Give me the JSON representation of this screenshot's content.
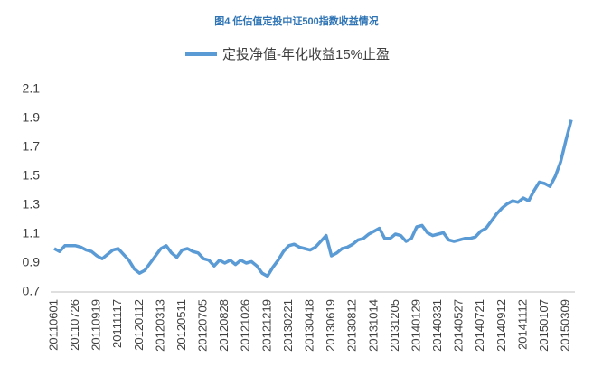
{
  "chart_data": {
    "type": "line",
    "title": "图4   低估值定投中证500指数收益情况",
    "categories": [
      "20110601",
      null,
      null,
      null,
      "20110726",
      null,
      null,
      null,
      "20110919",
      null,
      null,
      null,
      "20111117",
      null,
      null,
      null,
      "20120112",
      null,
      null,
      null,
      "20120313",
      null,
      null,
      null,
      "20120511",
      null,
      null,
      null,
      "20120705",
      null,
      null,
      null,
      "20120828",
      null,
      null,
      null,
      "20121026",
      null,
      null,
      null,
      "20121219",
      null,
      null,
      null,
      "20130221",
      null,
      null,
      null,
      "20130418",
      null,
      null,
      null,
      "20130619",
      null,
      null,
      null,
      "20130812",
      null,
      null,
      null,
      "20131014",
      null,
      null,
      null,
      "20131205",
      null,
      null,
      null,
      "20140129",
      null,
      null,
      null,
      "20140331",
      null,
      null,
      null,
      "20140527",
      null,
      null,
      null,
      "20140721",
      null,
      null,
      null,
      "20140912",
      null,
      null,
      null,
      "20141112",
      null,
      null,
      null,
      "20150107",
      null,
      null,
      null,
      "20150309",
      null
    ],
    "series": [
      {
        "name": "定投净值-年化收益15%止盈",
        "color": "#5b9bd5",
        "values": [
          1.0,
          0.98,
          1.02,
          1.02,
          1.02,
          1.01,
          0.99,
          0.98,
          0.95,
          0.93,
          0.96,
          0.99,
          1.0,
          0.96,
          0.92,
          0.86,
          0.83,
          0.85,
          0.9,
          0.95,
          1.0,
          1.02,
          0.97,
          0.94,
          0.99,
          1.0,
          0.98,
          0.97,
          0.93,
          0.92,
          0.88,
          0.92,
          0.9,
          0.92,
          0.89,
          0.92,
          0.9,
          0.91,
          0.88,
          0.83,
          0.81,
          0.87,
          0.92,
          0.98,
          1.02,
          1.03,
          1.01,
          1.0,
          0.99,
          1.01,
          1.05,
          1.09,
          0.95,
          0.97,
          1.0,
          1.01,
          1.03,
          1.06,
          1.07,
          1.1,
          1.12,
          1.14,
          1.07,
          1.07,
          1.1,
          1.09,
          1.05,
          1.07,
          1.15,
          1.16,
          1.11,
          1.09,
          1.1,
          1.11,
          1.06,
          1.05,
          1.06,
          1.07,
          1.07,
          1.08,
          1.12,
          1.14,
          1.19,
          1.24,
          1.28,
          1.31,
          1.33,
          1.32,
          1.35,
          1.33,
          1.4,
          1.46,
          1.45,
          1.43,
          1.5,
          1.6,
          1.75,
          1.89
        ]
      }
    ],
    "ylim": [
      0.7,
      2.1
    ],
    "yticks": [
      0.7,
      0.9,
      1.1,
      1.3,
      1.5,
      1.7,
      1.9,
      2.1
    ]
  }
}
